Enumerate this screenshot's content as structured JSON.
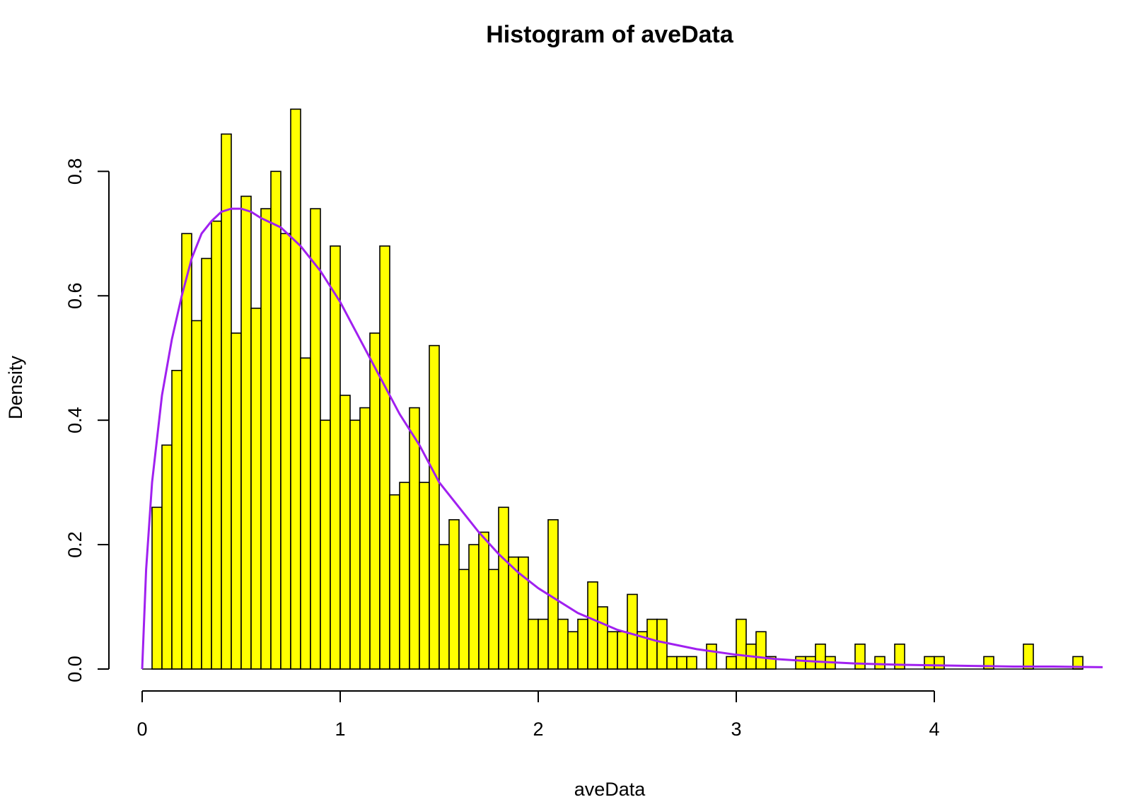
{
  "chart_data": {
    "type": "bar",
    "title": "Histogram of aveData",
    "xlabel": "aveData",
    "ylabel": "Density",
    "xlim": [
      0,
      4.85
    ],
    "ylim": [
      0,
      0.9
    ],
    "x_ticks": [
      "0",
      "1",
      "2",
      "3",
      "4"
    ],
    "y_ticks": [
      "0.0",
      "0.2",
      "0.4",
      "0.6",
      "0.8"
    ],
    "bin_width": 0.05,
    "bin_start": 0.0,
    "bars": [
      0.0,
      0.26,
      0.36,
      0.48,
      0.7,
      0.56,
      0.66,
      0.72,
      0.86,
      0.54,
      0.76,
      0.58,
      0.74,
      0.8,
      0.7,
      0.9,
      0.5,
      0.74,
      0.4,
      0.68,
      0.44,
      0.4,
      0.42,
      0.54,
      0.68,
      0.28,
      0.3,
      0.42,
      0.3,
      0.52,
      0.2,
      0.24,
      0.16,
      0.2,
      0.22,
      0.16,
      0.26,
      0.18,
      0.18,
      0.08,
      0.08,
      0.24,
      0.08,
      0.06,
      0.08,
      0.14,
      0.1,
      0.06,
      0.06,
      0.12,
      0.06,
      0.08,
      0.08,
      0.02,
      0.02,
      0.02,
      0.0,
      0.04,
      0.0,
      0.02,
      0.08,
      0.04,
      0.06,
      0.02,
      0.0,
      0.0,
      0.02,
      0.02,
      0.04,
      0.02,
      0.0,
      0.0,
      0.04,
      0.0,
      0.02,
      0.0,
      0.04,
      0.0,
      0.0,
      0.02,
      0.02,
      0.0,
      0.0,
      0.0,
      0.0,
      0.02,
      0.0,
      0.0,
      0.0,
      0.04,
      0.0,
      0.0,
      0.0,
      0.0,
      0.02
    ],
    "curve": {
      "type": "density",
      "color": "#a020f0",
      "x": [
        0.0,
        0.02,
        0.05,
        0.1,
        0.15,
        0.2,
        0.25,
        0.3,
        0.35,
        0.4,
        0.45,
        0.5,
        0.55,
        0.6,
        0.7,
        0.8,
        0.9,
        1.0,
        1.1,
        1.2,
        1.3,
        1.4,
        1.5,
        1.6,
        1.7,
        1.8,
        1.9,
        2.0,
        2.2,
        2.4,
        2.6,
        2.8,
        3.0,
        3.2,
        3.4,
        3.6,
        3.8,
        4.0,
        4.2,
        4.4,
        4.6,
        4.85
      ],
      "y": [
        0.0,
        0.16,
        0.3,
        0.44,
        0.53,
        0.6,
        0.66,
        0.7,
        0.72,
        0.735,
        0.74,
        0.74,
        0.735,
        0.725,
        0.71,
        0.68,
        0.64,
        0.59,
        0.53,
        0.47,
        0.41,
        0.36,
        0.3,
        0.26,
        0.22,
        0.185,
        0.155,
        0.13,
        0.09,
        0.063,
        0.045,
        0.032,
        0.023,
        0.016,
        0.012,
        0.009,
        0.007,
        0.006,
        0.005,
        0.004,
        0.004,
        0.003
      ]
    },
    "bar_color": "#ffff00",
    "bar_edge_color": "#000000",
    "grid": false,
    "legend": "none"
  }
}
